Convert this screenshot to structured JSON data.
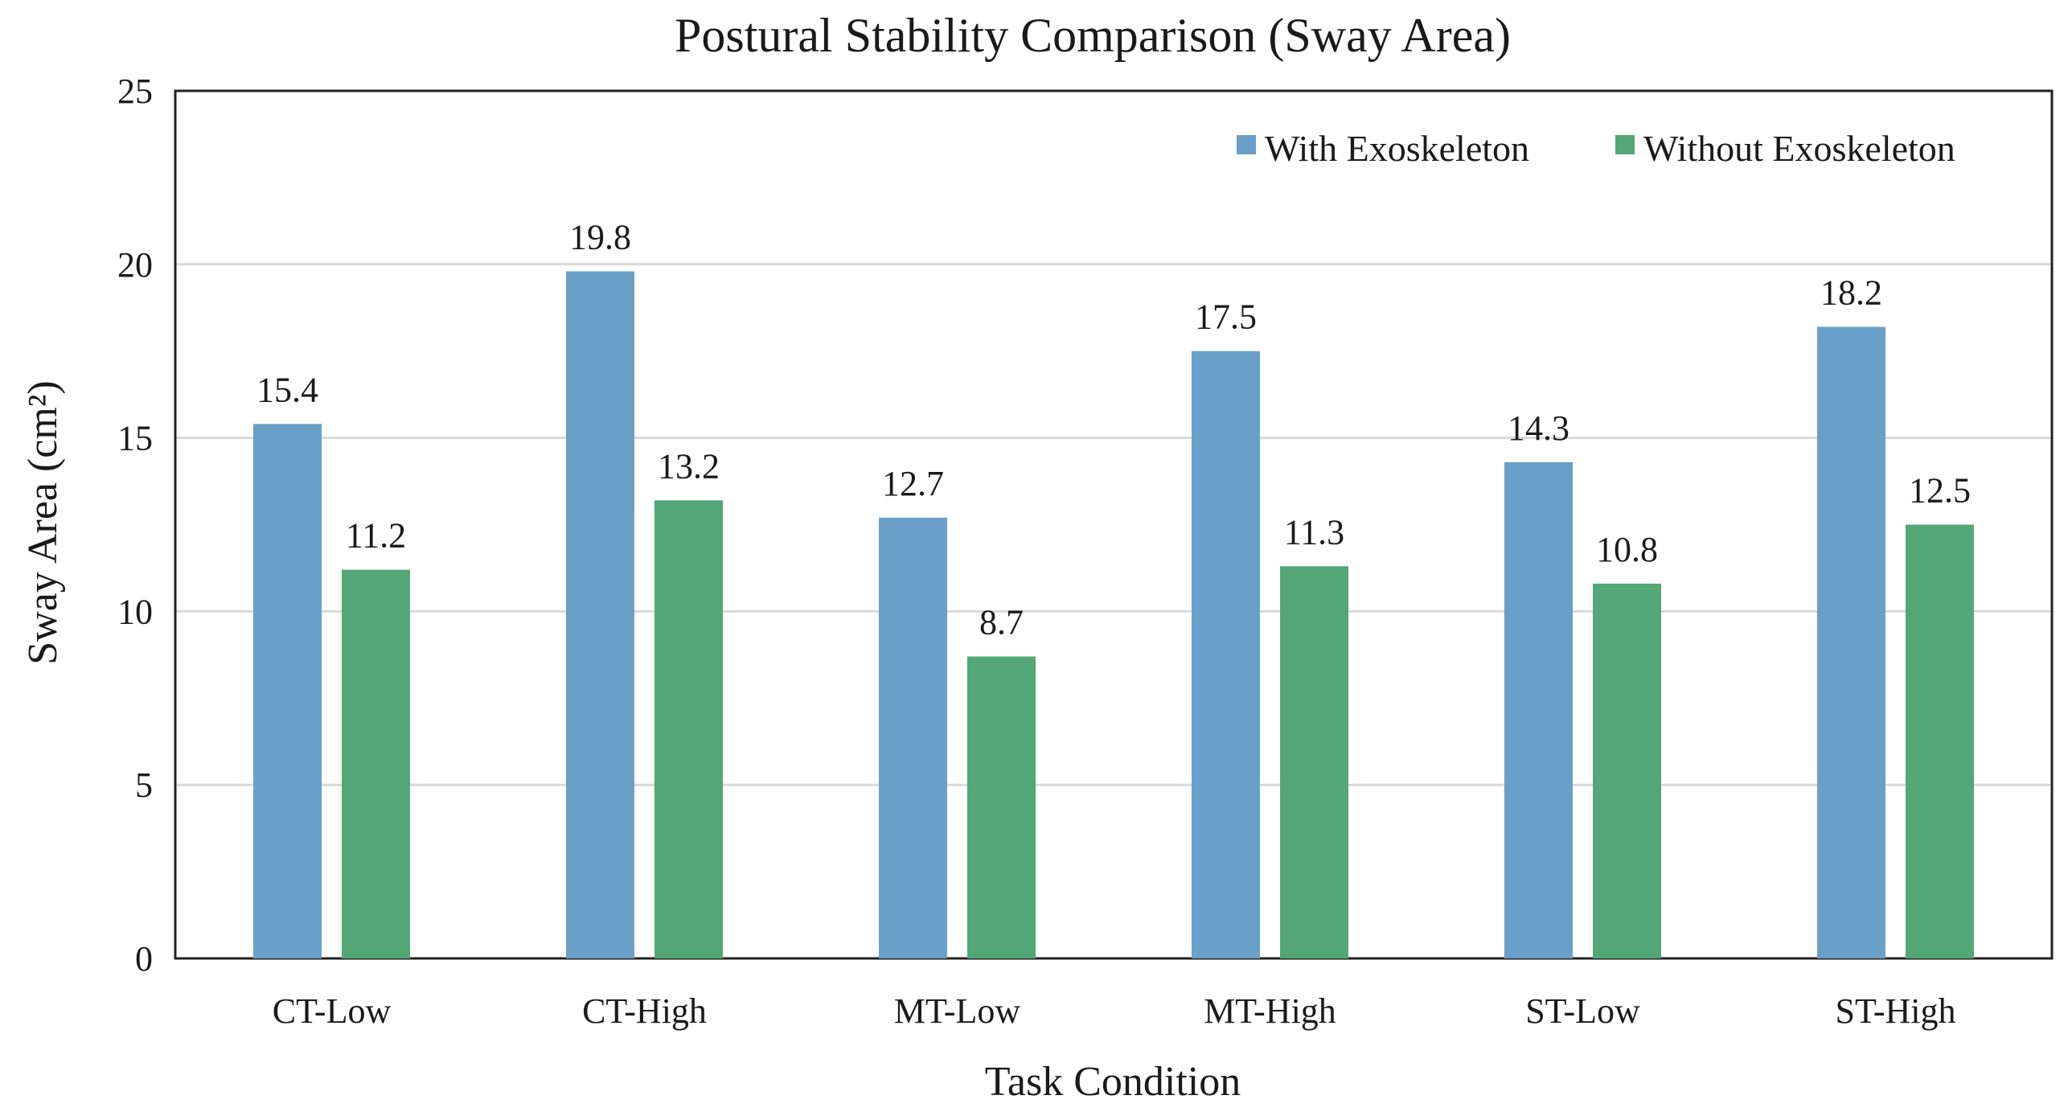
{
  "chart_data": {
    "type": "bar",
    "title": "Postural Stability Comparison (Sway Area)",
    "xlabel": "Task Condition",
    "ylabel": "Sway Area (cm²)",
    "categories": [
      "CT-Low",
      "CT-High",
      "MT-Low",
      "MT-High",
      "ST-Low",
      "ST-High"
    ],
    "series": [
      {
        "name": "With Exoskeleton",
        "color": "#6a9fc7",
        "values": [
          15.4,
          19.8,
          12.7,
          17.5,
          14.3,
          18.2
        ]
      },
      {
        "name": "Without Exoskeleton",
        "color": "#53a675",
        "values": [
          11.2,
          13.2,
          8.7,
          11.3,
          10.8,
          12.5
        ]
      }
    ],
    "ylim": [
      0,
      25
    ],
    "yticks": [
      0,
      5,
      10,
      15,
      20,
      25
    ],
    "grid": true,
    "legend_position": "top-right"
  }
}
